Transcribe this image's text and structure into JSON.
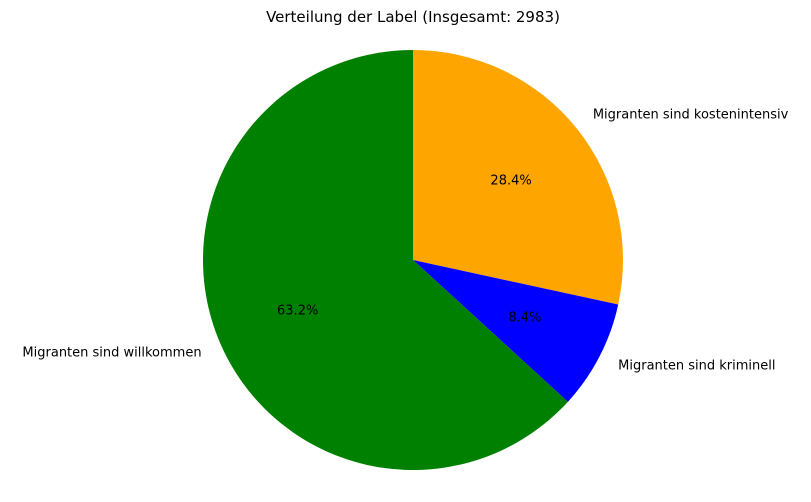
{
  "chart_data": {
    "type": "pie",
    "title": "Verteilung der Label (Insgesamt: 2983)",
    "start_angle_deg": 90,
    "direction": "clockwise",
    "slices": [
      {
        "label": "Migranten sind kostenintensiv",
        "value": 28.4,
        "pct_label": "28.4%",
        "color": "#FFA500"
      },
      {
        "label": "Migranten sind kriminell",
        "value": 8.4,
        "pct_label": "8.4%",
        "color": "#0000FF"
      },
      {
        "label": "Migranten sind willkommen",
        "value": 63.2,
        "pct_label": "63.2%",
        "color": "#008000"
      }
    ]
  }
}
